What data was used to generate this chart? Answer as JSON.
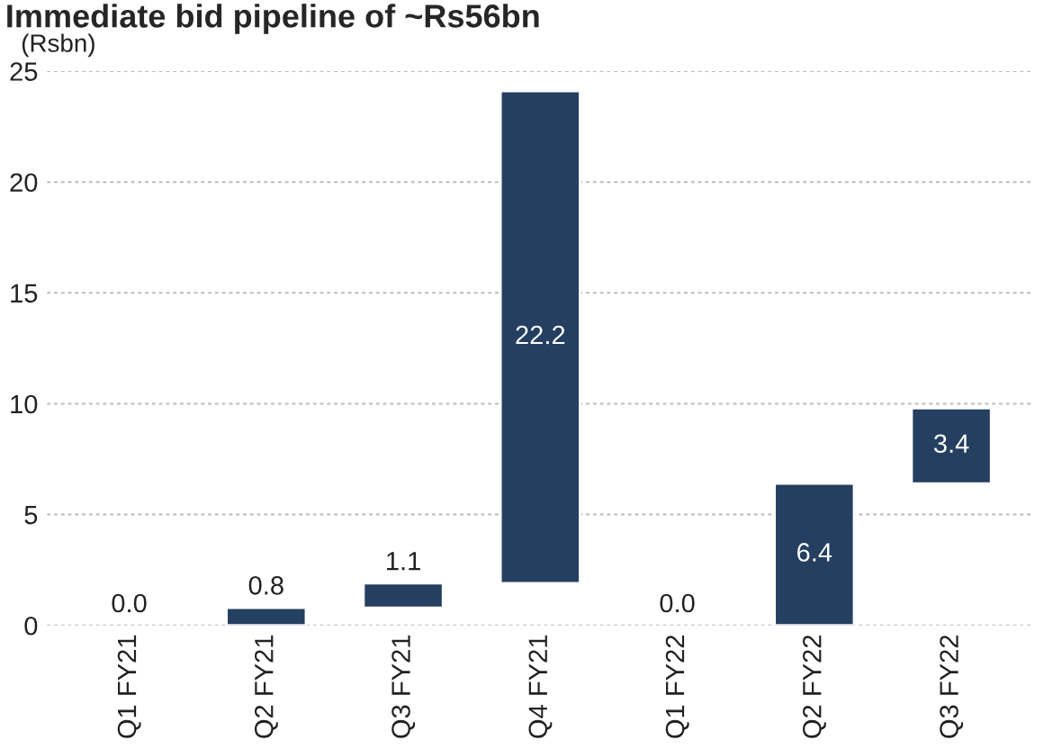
{
  "chart_data": {
    "type": "bar",
    "title": "Immediate bid pipeline of ~Rs56bn",
    "ylabel": "(Rsbn)",
    "categories": [
      "Q1 FY21",
      "Q2 FY21",
      "Q3 FY21",
      "Q4 FY21",
      "Q1 FY22",
      "Q2 FY22",
      "Q3 FY22"
    ],
    "values": [
      0.0,
      0.8,
      1.1,
      22.2,
      0.0,
      6.4,
      3.4
    ],
    "base": [
      null,
      0,
      0.8,
      1.9,
      null,
      0,
      6.4
    ],
    "color": "#243f60",
    "ylim": [
      0,
      25
    ],
    "yticks": [
      0,
      5,
      10,
      15,
      20,
      25
    ],
    "grid": "y",
    "value_labels": [
      "0.0",
      "0.8",
      "1.1",
      "22.2",
      "0.0",
      "6.4",
      "3.4"
    ]
  }
}
